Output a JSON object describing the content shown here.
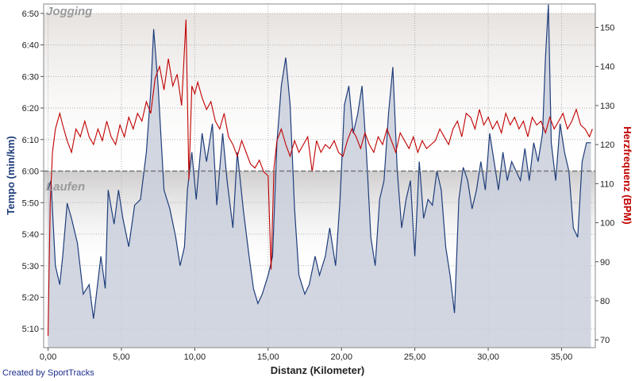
{
  "credit": "Created by SportTracks",
  "colors": {
    "tempo": "#1f3d7a",
    "tempo_fill": "#c9cfdc",
    "herz": "#c00000",
    "zone_jogging": "#e6e2df",
    "zone_laufen": "#cfcdcd",
    "threshold": "#777777"
  },
  "chart_data": {
    "type": "area+line",
    "xlabel": "Distanz (Kilometer)",
    "ylabel_left": "Tempo (min/km)",
    "ylabel_right": "Herzfrequenz (BPM)",
    "zones": [
      {
        "name": "Jogging",
        "from_min": 6.0,
        "to_min": 6.833
      },
      {
        "name": "Laufen",
        "from_min": 5.5,
        "to_min": 6.0
      }
    ],
    "threshold_min": 6.0,
    "xlim": [
      -0.3,
      37.3
    ],
    "ylim_left_minutes": [
      5.067,
      6.883
    ],
    "ylim_right_bpm": [
      68,
      156
    ],
    "x_ticks": [
      0,
      5,
      10,
      15,
      20,
      25,
      30,
      35
    ],
    "x_tick_labels": [
      "0,00",
      "5,00",
      "10,00",
      "15,00",
      "20,00",
      "25,00",
      "30,00",
      "35,00"
    ],
    "y_left_ticks_min": [
      5.1667,
      5.3333,
      5.5,
      5.6667,
      5.8333,
      6.0,
      6.1667,
      6.3333,
      6.5,
      6.6667,
      6.8333
    ],
    "y_left_tick_labels": [
      "5:10",
      "5:20",
      "5:30",
      "5:40",
      "5:50",
      "6:00",
      "6:10",
      "6:20",
      "6:30",
      "6:40",
      "6:50"
    ],
    "y_right_ticks": [
      70,
      80,
      90,
      100,
      110,
      120,
      130,
      140,
      150
    ],
    "y_right_tick_labels": [
      "70",
      "80",
      "90",
      "100",
      "110",
      "120",
      "130",
      "140",
      "150"
    ],
    "series": [
      {
        "name": "Tempo",
        "axis": "left",
        "x": [
          0,
          0.2,
          0.5,
          0.8,
          1.0,
          1.3,
          1.6,
          2.0,
          2.4,
          2.8,
          3.1,
          3.3,
          3.6,
          3.9,
          4.1,
          4.5,
          4.8,
          5.1,
          5.5,
          5.9,
          6.3,
          6.7,
          7.0,
          7.2,
          7.5,
          7.9,
          8.3,
          8.7,
          9.0,
          9.3,
          9.5,
          9.8,
          10.1,
          10.5,
          10.8,
          11.2,
          11.5,
          11.9,
          12.2,
          12.6,
          12.9,
          13.3,
          13.7,
          14.0,
          14.3,
          14.6,
          15.0,
          15.3,
          15.6,
          15.9,
          16.2,
          16.5,
          16.8,
          17.1,
          17.5,
          17.8,
          18.2,
          18.5,
          18.9,
          19.2,
          19.6,
          19.9,
          20.2,
          20.5,
          20.8,
          21.1,
          21.4,
          21.7,
          22.0,
          22.3,
          22.6,
          22.9,
          23.2,
          23.5,
          23.8,
          24.1,
          24.4,
          24.7,
          25.0,
          25.3,
          25.6,
          25.9,
          26.2,
          26.5,
          26.8,
          27.1,
          27.4,
          27.7,
          28.0,
          28.3,
          28.6,
          28.9,
          29.2,
          29.5,
          29.8,
          30.1,
          30.4,
          30.7,
          31.0,
          31.3,
          31.6,
          31.9,
          32.2,
          32.5,
          32.8,
          33.1,
          33.4,
          33.7,
          33.9,
          34.1,
          34.3,
          34.6,
          34.9,
          35.2,
          35.5,
          35.8,
          36.1,
          36.4,
          36.7,
          37.0
        ],
        "y_minutes": [
          5.9,
          5.95,
          5.5,
          5.4,
          5.55,
          5.83,
          5.75,
          5.62,
          5.35,
          5.4,
          5.22,
          5.35,
          5.55,
          5.38,
          5.9,
          5.72,
          5.9,
          5.75,
          5.6,
          5.82,
          5.85,
          6.1,
          6.42,
          6.75,
          6.45,
          5.9,
          5.8,
          5.65,
          5.5,
          5.6,
          5.9,
          6.1,
          5.85,
          6.2,
          6.05,
          6.25,
          5.82,
          6.2,
          5.95,
          5.7,
          6.1,
          5.8,
          5.55,
          5.38,
          5.3,
          5.35,
          5.45,
          5.55,
          6.15,
          6.45,
          6.6,
          6.35,
          5.8,
          5.45,
          5.35,
          5.4,
          5.55,
          5.45,
          5.55,
          5.7,
          5.5,
          5.85,
          6.35,
          6.45,
          6.2,
          6.3,
          6.45,
          6.1,
          5.65,
          5.5,
          5.85,
          5.95,
          6.3,
          6.55,
          6.0,
          5.7,
          5.85,
          5.95,
          5.55,
          6.05,
          5.75,
          5.85,
          5.82,
          6.0,
          5.9,
          5.6,
          5.45,
          5.25,
          5.85,
          6.02,
          5.95,
          5.8,
          5.9,
          6.05,
          5.9,
          6.2,
          6.05,
          5.9,
          6.1,
          5.95,
          6.05,
          6.0,
          5.95,
          6.12,
          5.95,
          6.15,
          6.05,
          6.2,
          6.6,
          6.88,
          6.15,
          5.95,
          6.25,
          6.1,
          6.0,
          5.7,
          5.65,
          6.05,
          6.15,
          6.15
        ]
      },
      {
        "name": "Herzfrequenz",
        "axis": "right",
        "x": [
          0,
          0.15,
          0.3,
          0.5,
          0.8,
          1.0,
          1.3,
          1.6,
          1.9,
          2.2,
          2.5,
          2.8,
          3.1,
          3.4,
          3.7,
          4.0,
          4.3,
          4.6,
          4.9,
          5.2,
          5.5,
          5.8,
          6.1,
          6.4,
          6.7,
          7.0,
          7.3,
          7.6,
          7.9,
          8.2,
          8.5,
          8.8,
          9.1,
          9.4,
          9.6,
          9.8,
          10.0,
          10.2,
          10.5,
          10.8,
          11.1,
          11.4,
          11.7,
          12.0,
          12.3,
          12.6,
          12.9,
          13.2,
          13.5,
          13.8,
          14.1,
          14.4,
          14.7,
          15.0,
          15.2,
          15.4,
          15.6,
          15.9,
          16.2,
          16.5,
          16.8,
          17.1,
          17.4,
          17.7,
          18.0,
          18.3,
          18.6,
          18.9,
          19.2,
          19.5,
          19.8,
          20.1,
          20.4,
          20.7,
          21.0,
          21.3,
          21.6,
          21.9,
          22.2,
          22.5,
          22.8,
          23.1,
          23.4,
          23.7,
          24.0,
          24.3,
          24.6,
          24.9,
          25.2,
          25.5,
          25.8,
          26.1,
          26.4,
          26.7,
          27.0,
          27.3,
          27.6,
          27.9,
          28.2,
          28.5,
          28.8,
          29.1,
          29.4,
          29.7,
          30.0,
          30.3,
          30.6,
          30.9,
          31.2,
          31.5,
          31.8,
          32.1,
          32.4,
          32.7,
          33.0,
          33.3,
          33.6,
          33.9,
          34.2,
          34.5,
          34.8,
          35.1,
          35.4,
          35.7,
          36.0,
          36.3,
          36.6,
          36.9,
          37.1
        ],
        "y_bpm": [
          71,
          105,
          118,
          124,
          128,
          125,
          121,
          118,
          124,
          122,
          126,
          122,
          120,
          124,
          121,
          126,
          122,
          120,
          125,
          122,
          127,
          124,
          128,
          126,
          131,
          128,
          137,
          140,
          134,
          142,
          135,
          138,
          130,
          152,
          111,
          135,
          133,
          136,
          132,
          129,
          131,
          126,
          124,
          128,
          122,
          120,
          117,
          121,
          118,
          115,
          114,
          116,
          113,
          112,
          88,
          114,
          121,
          124,
          120,
          117,
          121,
          118,
          120,
          122,
          113,
          121,
          118,
          120,
          119,
          121,
          118,
          117,
          121,
          124,
          122,
          119,
          123,
          120,
          118,
          122,
          120,
          124,
          121,
          118,
          123,
          121,
          119,
          122,
          118,
          121,
          119,
          120,
          121,
          124,
          122,
          120,
          124,
          126,
          122,
          128,
          127,
          124,
          129,
          125,
          127,
          124,
          126,
          123,
          128,
          125,
          127,
          124,
          126,
          122,
          127,
          125,
          126,
          123,
          127,
          124,
          126,
          128,
          124,
          126,
          129,
          125,
          124,
          122,
          124
        ]
      }
    ]
  }
}
